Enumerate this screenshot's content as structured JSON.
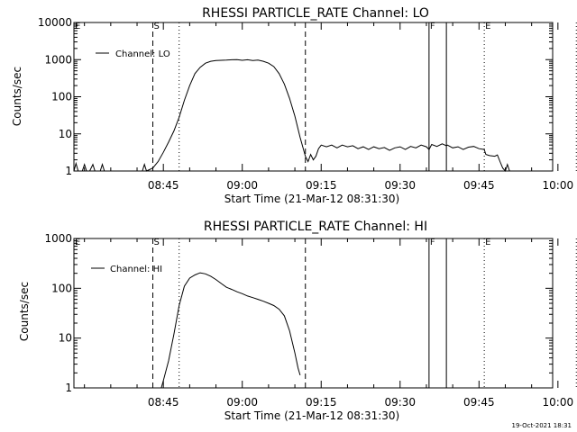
{
  "footer": {
    "timestamp": "19-Oct-2021 18:31"
  },
  "chart_data": [
    {
      "type": "line",
      "title": "RHESSI PARTICLE_RATE Channel: LO",
      "xlabel": "Start Time (21-Mar-12 08:31:30)",
      "ylabel": "Counts/sec",
      "yscale": "log",
      "ylim": [
        1,
        10000
      ],
      "xlim_min": [
        -3,
        88
      ],
      "x_ticks": [
        {
          "min": 14,
          "label": "08:45"
        },
        {
          "min": 29,
          "label": "09:00"
        },
        {
          "min": 44,
          "label": "09:15"
        },
        {
          "min": 59,
          "label": "09:30"
        },
        {
          "min": 74,
          "label": "09:45"
        },
        {
          "min": 89,
          "label": "10:00"
        }
      ],
      "y_ticks": [
        {
          "value": 1,
          "label": "1"
        },
        {
          "value": 10,
          "label": "10"
        },
        {
          "value": 100,
          "label": "100"
        },
        {
          "value": 1000,
          "label": "1000"
        },
        {
          "value": 10000,
          "label": "10000"
        }
      ],
      "legend": "Channel: LO",
      "markers": [
        {
          "min": -3,
          "label": "E",
          "style": "none"
        },
        {
          "min": 12,
          "label": "S",
          "style": "dashed"
        },
        {
          "min": 17,
          "label": "",
          "style": "dotted"
        },
        {
          "min": 41,
          "label": "",
          "style": "dashed"
        },
        {
          "min": 64.5,
          "label": "F",
          "style": "solid"
        },
        {
          "min": 67.8,
          "label": "",
          "style": "solid"
        },
        {
          "min": 75,
          "label": "E",
          "style": "dotted"
        },
        {
          "min": 92.5,
          "label": "",
          "style": "dotted"
        }
      ],
      "series": [
        {
          "name": "Channel: LO",
          "points": [
            [
              -3,
              1
            ],
            [
              -2.6,
              1.6
            ],
            [
              -2.2,
              1
            ],
            [
              -1.4,
              1
            ],
            [
              -1,
              1.5
            ],
            [
              -0.6,
              1
            ],
            [
              0,
              1
            ],
            [
              0.6,
              1.5
            ],
            [
              1,
              1
            ],
            [
              2,
              1
            ],
            [
              2.4,
              1.5
            ],
            [
              2.8,
              1
            ],
            [
              10,
              1
            ],
            [
              10.4,
              1.5
            ],
            [
              10.8,
              1
            ],
            [
              12,
              1.2
            ],
            [
              13,
              1.8
            ],
            [
              14,
              3.2
            ],
            [
              15,
              6
            ],
            [
              16,
              12
            ],
            [
              17,
              28
            ],
            [
              18,
              80
            ],
            [
              19,
              200
            ],
            [
              20,
              420
            ],
            [
              21,
              620
            ],
            [
              22,
              800
            ],
            [
              23,
              900
            ],
            [
              24,
              950
            ],
            [
              25,
              960
            ],
            [
              26,
              970
            ],
            [
              27,
              990
            ],
            [
              28,
              1000
            ],
            [
              29,
              960
            ],
            [
              30,
              990
            ],
            [
              31,
              950
            ],
            [
              32,
              970
            ],
            [
              33,
              900
            ],
            [
              34,
              800
            ],
            [
              35,
              650
            ],
            [
              36,
              420
            ],
            [
              37,
              220
            ],
            [
              38,
              90
            ],
            [
              39,
              30
            ],
            [
              40,
              8
            ],
            [
              40.5,
              4.5
            ],
            [
              41,
              2.5
            ],
            [
              41.5,
              1.8
            ],
            [
              42,
              2.8
            ],
            [
              42.5,
              2
            ],
            [
              43,
              2.5
            ],
            [
              43.5,
              4
            ],
            [
              44,
              5
            ],
            [
              45,
              4.5
            ],
            [
              46,
              5
            ],
            [
              47,
              4.2
            ],
            [
              48,
              5
            ],
            [
              49,
              4.5
            ],
            [
              50,
              4.8
            ],
            [
              51,
              4
            ],
            [
              52,
              4.5
            ],
            [
              53,
              3.8
            ],
            [
              54,
              4.5
            ],
            [
              55,
              4
            ],
            [
              56,
              4.3
            ],
            [
              57,
              3.6
            ],
            [
              58,
              4.2
            ],
            [
              59,
              4.5
            ],
            [
              60,
              3.8
            ],
            [
              61,
              4.6
            ],
            [
              62,
              4.2
            ],
            [
              63,
              5
            ],
            [
              64,
              4.5
            ],
            [
              64.5,
              3.8
            ],
            [
              65,
              5.2
            ],
            [
              66,
              4.6
            ],
            [
              67,
              5.4
            ],
            [
              67.8,
              4.8
            ],
            [
              68,
              5
            ],
            [
              69,
              4.2
            ],
            [
              70,
              4.5
            ],
            [
              71,
              3.8
            ],
            [
              72,
              4.4
            ],
            [
              73,
              4.6
            ],
            [
              74,
              4
            ],
            [
              75,
              3.8
            ],
            [
              75.3,
              2.8
            ],
            [
              76,
              2.6
            ],
            [
              77,
              2.5
            ],
            [
              77.5,
              2.7
            ],
            [
              78,
              1.8
            ],
            [
              78.5,
              1.2
            ],
            [
              79,
              1
            ],
            [
              79.4,
              1.5
            ],
            [
              79.8,
              1
            ],
            [
              80,
              1
            ]
          ]
        }
      ]
    },
    {
      "type": "line",
      "title": "RHESSI PARTICLE_RATE Channel: HI",
      "xlabel": "Start Time (21-Mar-12 08:31:30)",
      "ylabel": "Counts/sec",
      "yscale": "log",
      "ylim": [
        1,
        1000
      ],
      "xlim_min": [
        -3,
        88
      ],
      "x_ticks": [
        {
          "min": 14,
          "label": "08:45"
        },
        {
          "min": 29,
          "label": "09:00"
        },
        {
          "min": 44,
          "label": "09:15"
        },
        {
          "min": 59,
          "label": "09:30"
        },
        {
          "min": 74,
          "label": "09:45"
        },
        {
          "min": 89,
          "label": "10:00"
        }
      ],
      "y_ticks": [
        {
          "value": 1,
          "label": "1"
        },
        {
          "value": 10,
          "label": "10"
        },
        {
          "value": 100,
          "label": "100"
        },
        {
          "value": 1000,
          "label": "1000"
        }
      ],
      "legend": "Channel: HI",
      "markers": [
        {
          "min": -3,
          "label": "E",
          "style": "none"
        },
        {
          "min": 12,
          "label": "S",
          "style": "dashed"
        },
        {
          "min": 17,
          "label": "",
          "style": "dotted"
        },
        {
          "min": 41,
          "label": "",
          "style": "dashed"
        },
        {
          "min": 64.5,
          "label": "F",
          "style": "solid"
        },
        {
          "min": 67.8,
          "label": "",
          "style": "solid"
        },
        {
          "min": 75,
          "label": "E",
          "style": "dotted"
        },
        {
          "min": 92.5,
          "label": "",
          "style": "dotted"
        }
      ],
      "series": [
        {
          "name": "Channel: HI",
          "points": [
            [
              13.6,
              1
            ],
            [
              14,
              1.4
            ],
            [
              15,
              3.5
            ],
            [
              16,
              12
            ],
            [
              17,
              45
            ],
            [
              18,
              110
            ],
            [
              19,
              160
            ],
            [
              20,
              185
            ],
            [
              21,
              205
            ],
            [
              22,
              195
            ],
            [
              23,
              175
            ],
            [
              24,
              150
            ],
            [
              25,
              125
            ],
            [
              26,
              105
            ],
            [
              27,
              95
            ],
            [
              28,
              85
            ],
            [
              29,
              78
            ],
            [
              30,
              70
            ],
            [
              31,
              65
            ],
            [
              32,
              60
            ],
            [
              33,
              55
            ],
            [
              34,
              50
            ],
            [
              35,
              45
            ],
            [
              36,
              38
            ],
            [
              37,
              28
            ],
            [
              38,
              14
            ],
            [
              39,
              5
            ],
            [
              39.6,
              2.5
            ],
            [
              40,
              1.8
            ]
          ]
        }
      ]
    }
  ]
}
